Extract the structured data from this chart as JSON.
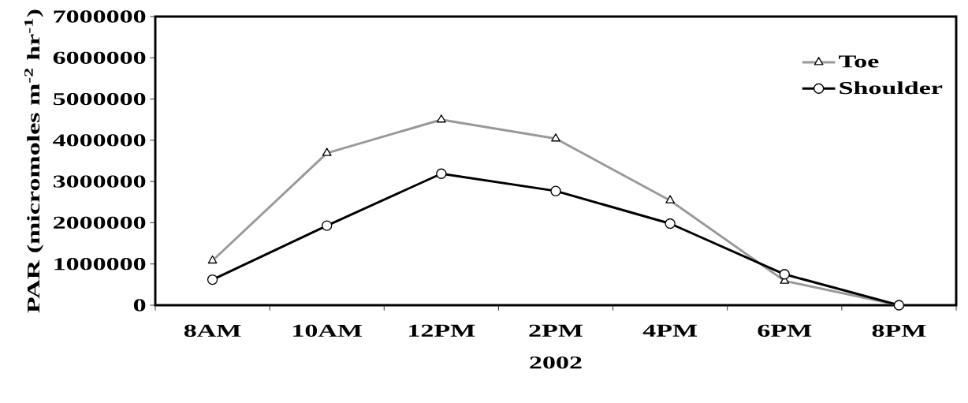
{
  "chart_data": {
    "type": "line",
    "xlabel": "2002",
    "ylabel": "PAR (micromoles m$^{-2}$ hr$^{-1}$)",
    "categories": [
      "8AM",
      "10AM",
      "12PM",
      "2PM",
      "4PM",
      "6PM",
      "8PM"
    ],
    "series": [
      {
        "name": "Toe",
        "color": "#999999",
        "marker": "triangle",
        "values": [
          1080000,
          3690000,
          4500000,
          4040000,
          2540000,
          590000,
          0
        ]
      },
      {
        "name": "Shoulder",
        "color": "#000000",
        "marker": "circle",
        "values": [
          620000,
          1930000,
          3190000,
          2770000,
          1980000,
          750000,
          0
        ]
      }
    ],
    "ylim": [
      0,
      7000000
    ],
    "yticks": [
      0,
      1000000,
      2000000,
      3000000,
      4000000,
      5000000,
      6000000,
      7000000
    ],
    "grid": false,
    "legend": "top right",
    "line_style": "solid"
  }
}
